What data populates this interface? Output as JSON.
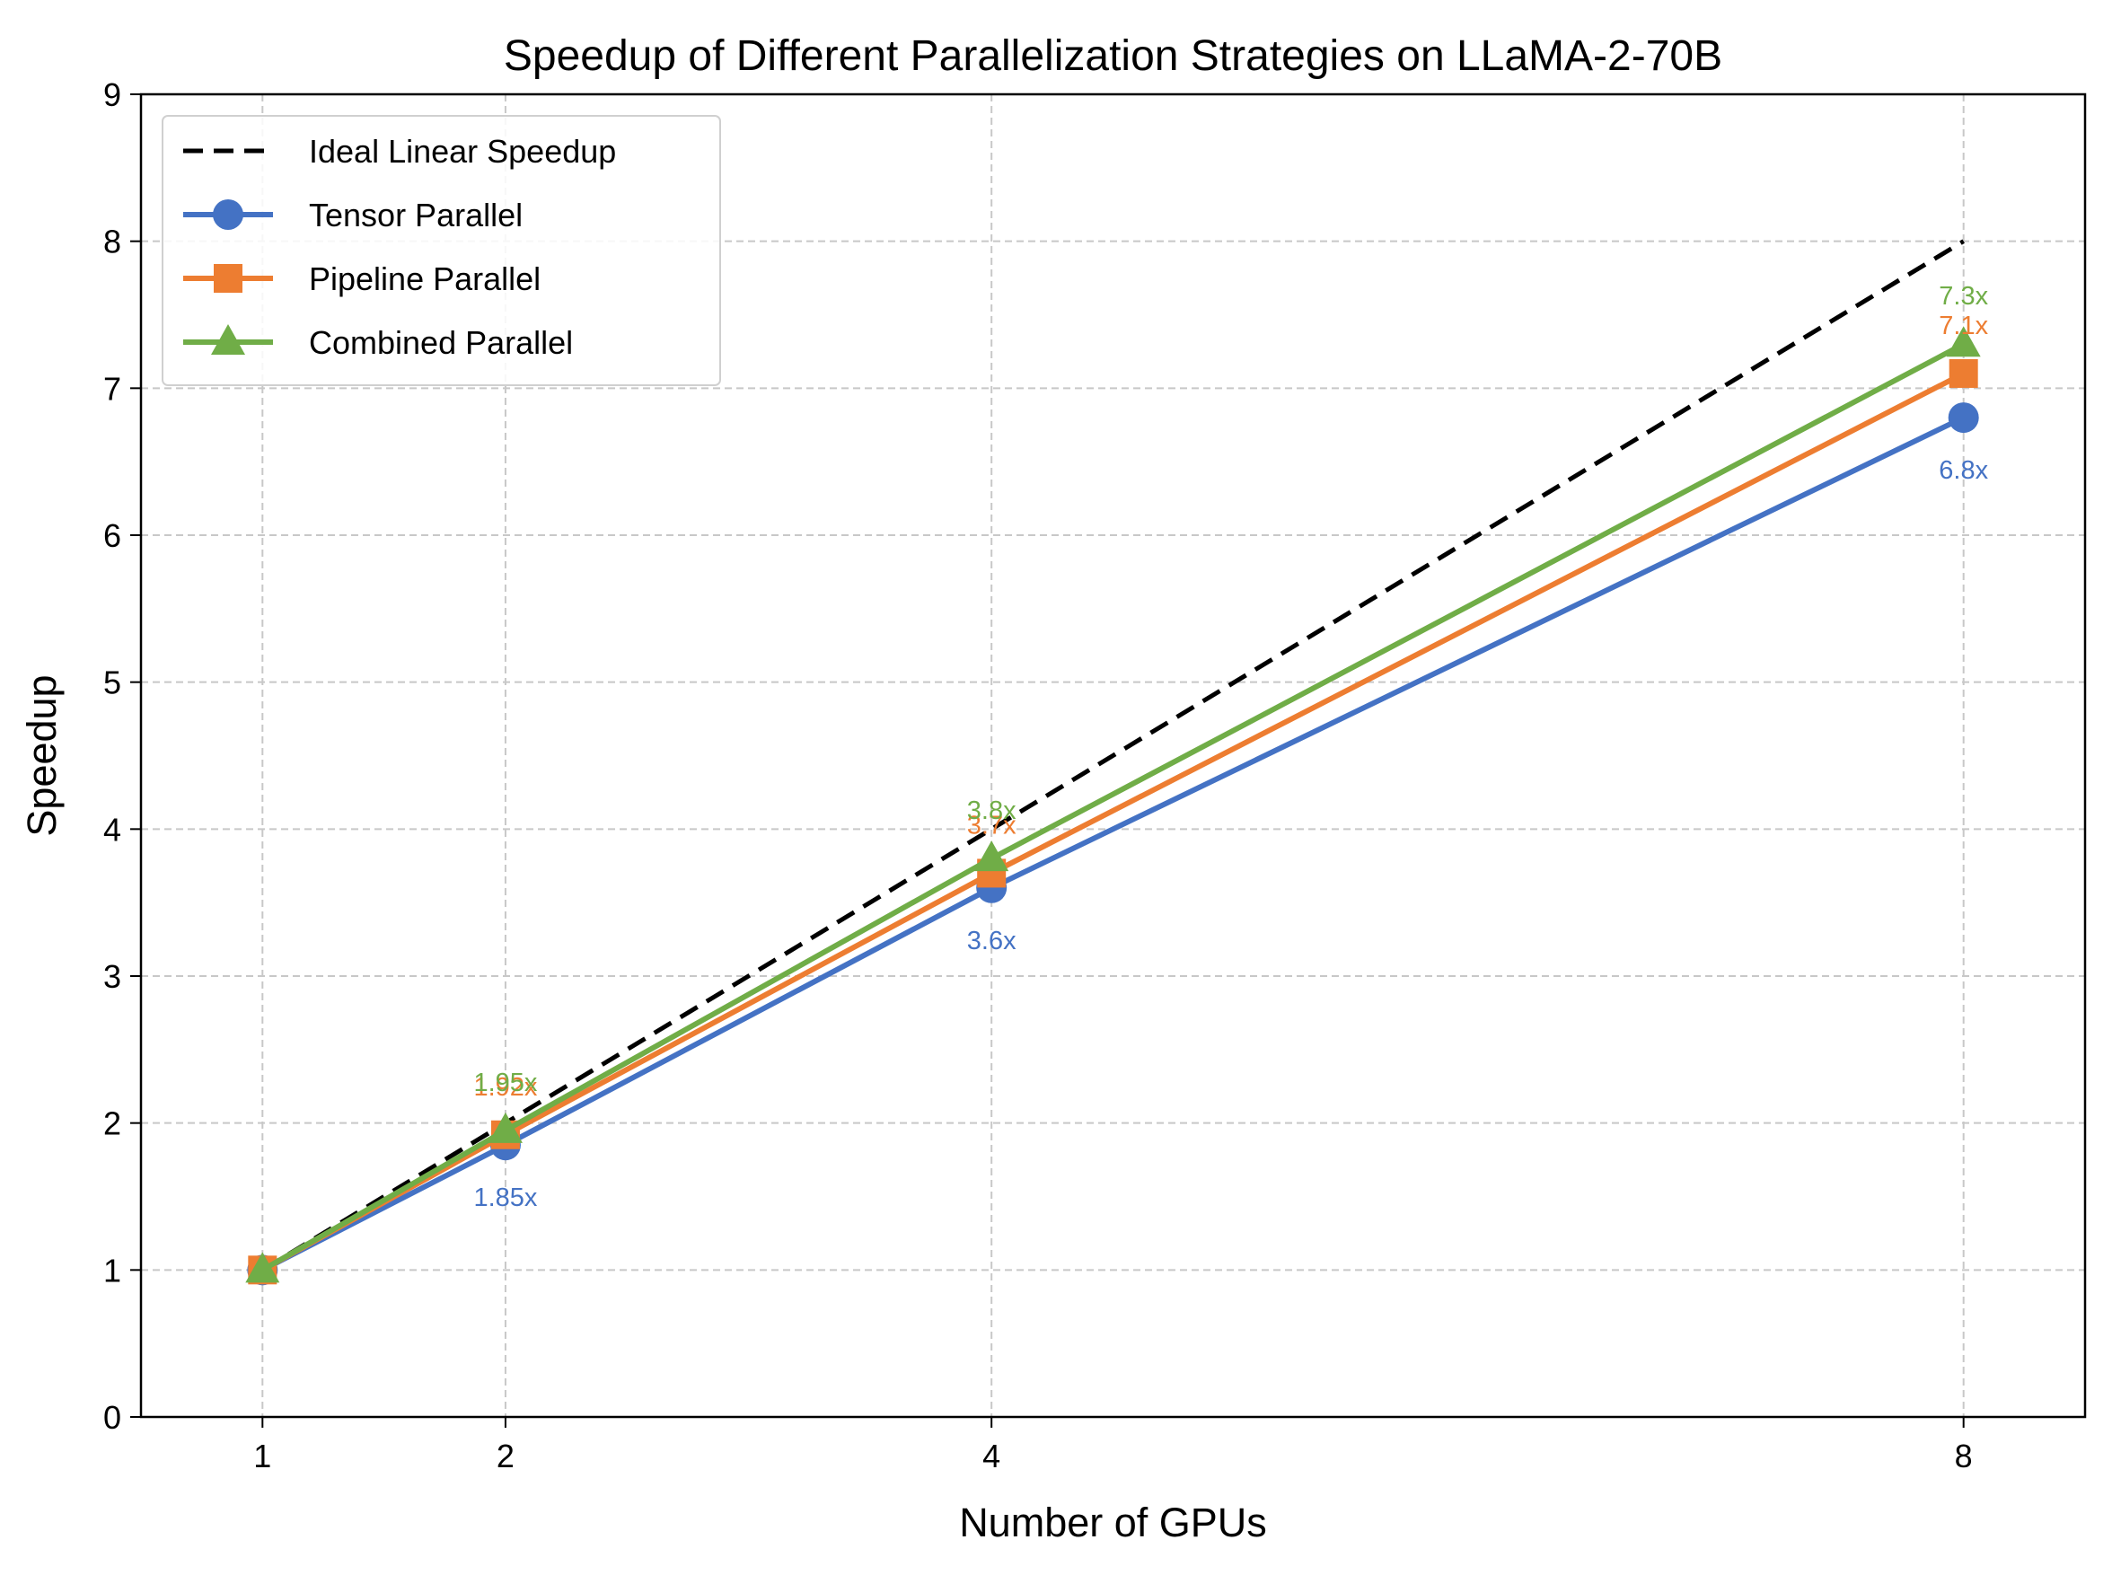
{
  "chart_data": {
    "type": "line",
    "title": "Speedup of Different Parallelization Strategies on LLaMA-2-70B",
    "xlabel": "Number of GPUs",
    "ylabel": "Speedup",
    "x": [
      1,
      2,
      4,
      8
    ],
    "x_tick_labels": [
      "1",
      "2",
      "4",
      "8"
    ],
    "xlim": [
      0.5,
      8.5
    ],
    "ylim": [
      0,
      9
    ],
    "y_ticks": [
      0,
      1,
      2,
      3,
      4,
      5,
      6,
      7,
      8,
      9
    ],
    "grid": true,
    "grid_style": "dashed",
    "legend_position": "top-left",
    "series": [
      {
        "name": "Ideal Linear Speedup",
        "values": [
          1,
          2,
          4,
          8
        ],
        "color": "#000000",
        "style": "dashed",
        "marker": "none",
        "labels": []
      },
      {
        "name": "Tensor Parallel",
        "values": [
          1,
          1.85,
          3.6,
          6.8
        ],
        "color": "#4472C4",
        "style": "solid",
        "marker": "circle",
        "labels": [
          "",
          "1.85x",
          "3.6x",
          "6.8x"
        ],
        "label_position": "below"
      },
      {
        "name": "Pipeline Parallel",
        "values": [
          1,
          1.92,
          3.7,
          7.1
        ],
        "color": "#ED7D31",
        "style": "solid",
        "marker": "square",
        "labels": [
          "",
          "1.92x",
          "3.7x",
          "7.1x"
        ],
        "label_position": "above"
      },
      {
        "name": "Combined Parallel",
        "values": [
          1,
          1.95,
          3.8,
          7.3
        ],
        "color": "#70AD47",
        "style": "solid",
        "marker": "triangle",
        "labels": [
          "",
          "1.95x",
          "3.8x",
          "7.3x"
        ],
        "label_position": "above"
      }
    ]
  }
}
